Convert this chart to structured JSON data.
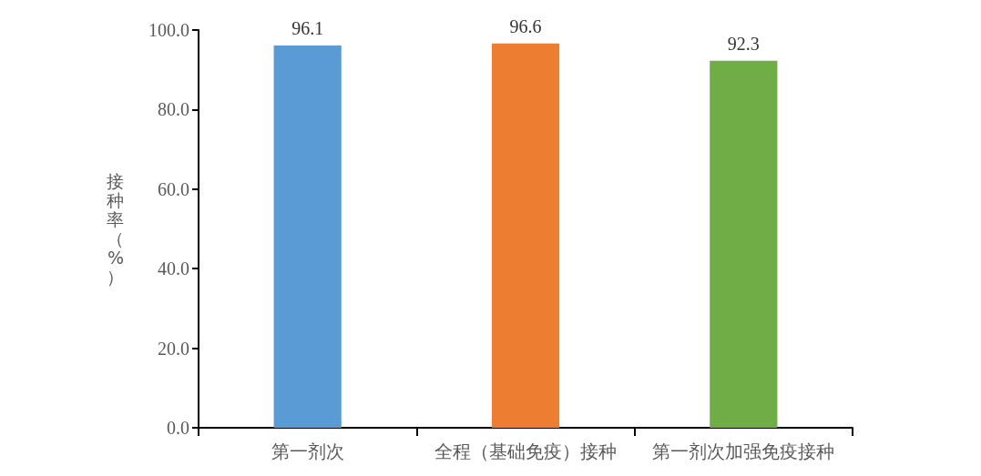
{
  "chart_data": {
    "type": "bar",
    "ylabel": "接种率（%）",
    "categories": [
      "第一剂次",
      "全程（基础免疫）接种",
      "第一剂次加强免疫接种"
    ],
    "values": [
      96.1,
      96.6,
      92.3
    ],
    "colors": [
      "#5b9bd5",
      "#ed7d31",
      "#70ad47"
    ],
    "ylim": [
      0,
      100
    ],
    "yticks": [
      {
        "value": 0,
        "label": "0.0"
      },
      {
        "value": 20,
        "label": "20.0"
      },
      {
        "value": 40,
        "label": "40.0"
      },
      {
        "value": 60,
        "label": "60.0"
      },
      {
        "value": 80,
        "label": "80.0"
      },
      {
        "value": 100,
        "label": "100.0"
      }
    ],
    "data_labels": true
  }
}
